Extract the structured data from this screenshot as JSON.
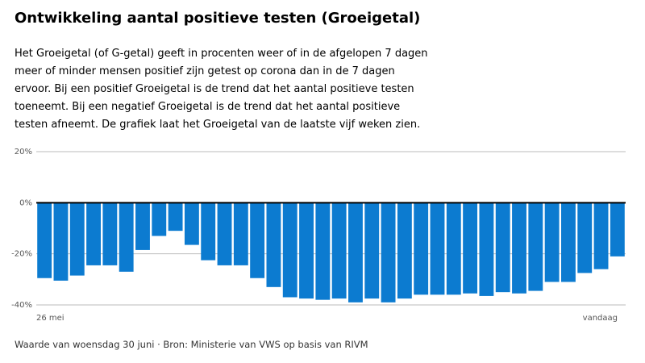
{
  "chart_data": {
    "type": "bar",
    "title": "Ontwikkeling aantal positieve testen (Groeigetal)",
    "subtitle": "Het Groeigetal (of G-getal) geeft in procenten weer of in de afgelopen 7 dagen meer of minder mensen positief zijn getest op corona dan in de 7 dagen ervoor. Bij een positief Groeigetal is de trend dat het aantal positieve testen toeneemt. Bij een negatief Groeigetal is de trend dat het aantal positieve testen afneemt. De grafiek laat het Groeigetal van de laatste vijf weken zien.",
    "footnote": "Waarde van woensdag 30 juni · Bron: Ministerie van VWS op basis van RIVM",
    "categories": [
      "26 mei",
      null,
      null,
      null,
      null,
      null,
      null,
      null,
      null,
      null,
      null,
      null,
      null,
      null,
      null,
      null,
      null,
      null,
      null,
      null,
      null,
      null,
      null,
      null,
      null,
      null,
      null,
      null,
      null,
      null,
      null,
      null,
      null,
      null,
      null,
      "vandaag"
    ],
    "values": [
      -29.5,
      -30.5,
      -28.5,
      -24.5,
      -24.5,
      -27,
      -18.5,
      -13,
      -11,
      -16.5,
      -22.5,
      -24.5,
      -24.5,
      -29.5,
      -33,
      -37,
      -37.5,
      -38,
      -37.5,
      -39,
      -37.5,
      -39,
      -37.5,
      -36,
      -36,
      -36,
      -35.5,
      -36.5,
      -35,
      -35.5,
      -34.5,
      -31,
      -31,
      -27.5,
      -26,
      -21
    ],
    "color": "#0c7bd0",
    "ylim": [
      -40,
      20
    ],
    "yticks": [
      {
        "value": 20,
        "label": "20%"
      },
      {
        "value": 0,
        "label": "0%"
      },
      {
        "value": -20,
        "label": "-20%"
      },
      {
        "value": -40,
        "label": "-40%"
      }
    ],
    "grid": true
  }
}
